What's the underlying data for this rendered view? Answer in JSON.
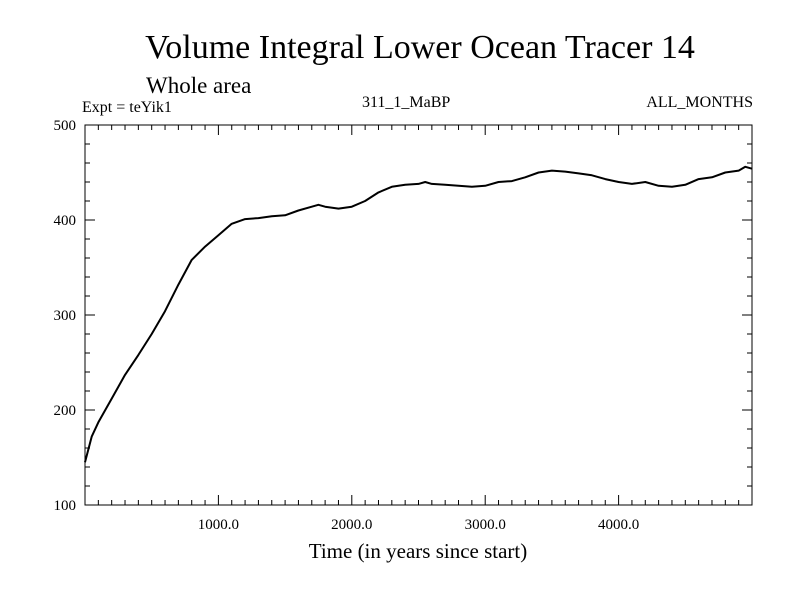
{
  "chart_data": {
    "type": "line",
    "title": "Volume Integral Lower Ocean Tracer 14",
    "subtitle": "Whole area",
    "expt_label": "Expt = teYik1",
    "run_label": "311_1_MaBP",
    "months_label": "ALL_MONTHS",
    "xlabel": "Time (in years since start)",
    "ylabel": "",
    "xlim": [
      0,
      5000
    ],
    "ylim": [
      100,
      500
    ],
    "xticks": [
      1000,
      2000,
      3000,
      4000
    ],
    "xtick_labels": [
      "1000.0",
      "2000.0",
      "3000.0",
      "4000.0"
    ],
    "yticks": [
      100,
      200,
      300,
      400,
      500
    ],
    "ytick_labels": [
      "100",
      "200",
      "300",
      "400",
      "500"
    ],
    "grid": false,
    "series": [
      {
        "name": "Tracer 14",
        "x": [
          0,
          50,
          100,
          200,
          300,
          400,
          500,
          600,
          700,
          800,
          900,
          1000,
          1100,
          1200,
          1300,
          1400,
          1500,
          1600,
          1700,
          1750,
          1800,
          1900,
          2000,
          2100,
          2200,
          2300,
          2400,
          2500,
          2550,
          2600,
          2700,
          2800,
          2900,
          3000,
          3100,
          3200,
          3300,
          3400,
          3500,
          3600,
          3700,
          3800,
          3900,
          4000,
          4100,
          4200,
          4300,
          4400,
          4500,
          4600,
          4700,
          4800,
          4900,
          4950,
          5000
        ],
        "values": [
          145,
          172,
          187,
          212,
          237,
          258,
          280,
          304,
          332,
          358,
          372,
          384,
          396,
          401,
          402,
          404,
          405,
          410,
          414,
          416,
          414,
          412,
          414,
          420,
          429,
          435,
          437,
          438,
          440,
          438,
          437,
          436,
          435,
          436,
          440,
          441,
          445,
          450,
          452,
          451,
          449,
          447,
          443,
          440,
          438,
          440,
          436,
          435,
          437,
          443,
          445,
          450,
          452,
          456,
          454
        ]
      }
    ]
  }
}
